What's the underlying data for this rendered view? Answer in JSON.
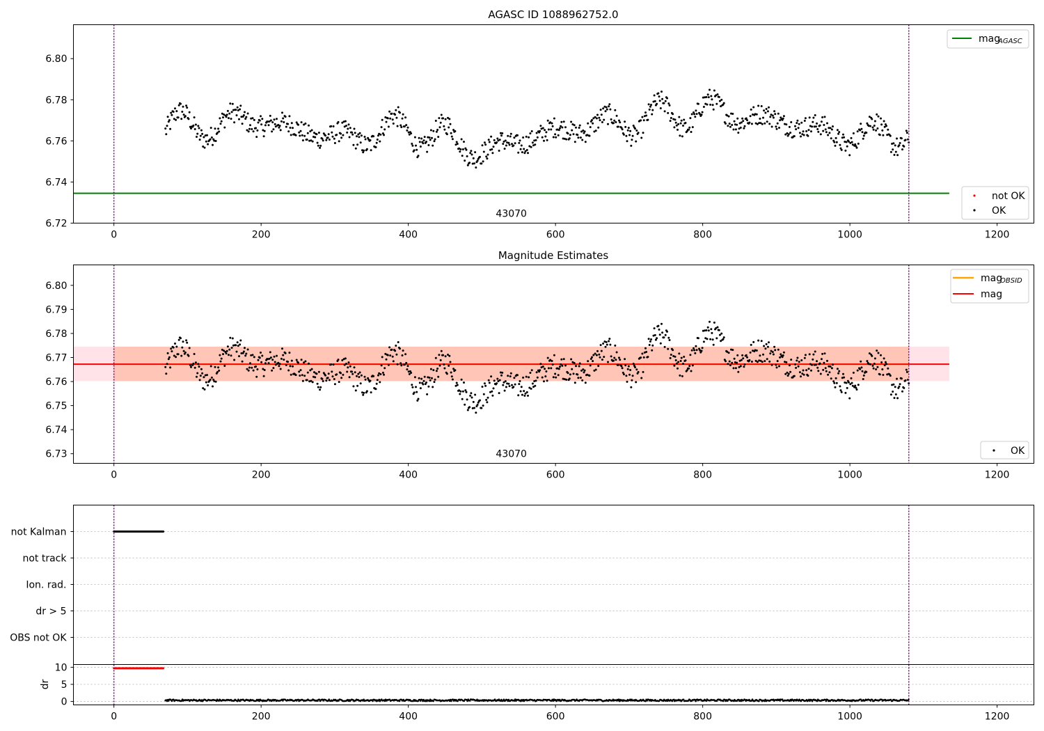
{
  "colors": {
    "points_ok": "#000000",
    "points_not_ok": "#ff0000",
    "mag_agasc_line": "#008000",
    "mag_obsid_line": "#ffa500",
    "mag_line": "#ff0000",
    "band_mag": "#ffc0cb",
    "band_obsid": "#ffa07a",
    "marker_line": "#800080",
    "grid": "#b0b0b0"
  },
  "chart_data": [
    {
      "id": "agasc",
      "type": "scatter",
      "title": "AGASC ID 1088962752.0",
      "xlabel": "",
      "ylabel": "",
      "xlim": [
        -55,
        1250
      ],
      "ylim": [
        6.72,
        6.8165
      ],
      "xticks": [
        "0",
        "200",
        "400",
        "600",
        "800",
        "1000",
        "1200"
      ],
      "yticks": [
        "6.72",
        "6.74",
        "6.76",
        "6.78",
        "6.80"
      ],
      "vlines": [
        0,
        1080
      ],
      "hlines": [
        {
          "name": "mag_AGASC",
          "y": 6.7345,
          "x": [
            -55,
            1135
          ]
        }
      ],
      "obsid_label": {
        "text": "43070",
        "x": 540
      },
      "series": [
        {
          "name": "OK",
          "x_range": [
            70,
            1080
          ],
          "baseline": 6.767,
          "amp": 0.008,
          "noise": 0.005,
          "count": 930,
          "trend": [
            [
              70,
              6.766
            ],
            [
              200,
              6.77
            ],
            [
              300,
              6.761
            ],
            [
              400,
              6.766
            ],
            [
              510,
              6.755
            ],
            [
              600,
              6.765
            ],
            [
              720,
              6.77
            ],
            [
              800,
              6.775
            ],
            [
              900,
              6.77
            ],
            [
              1000,
              6.762
            ],
            [
              1080,
              6.765
            ]
          ]
        },
        {
          "name": "not OK",
          "count": 0
        }
      ],
      "legend_upper": [
        {
          "label": "mag",
          "subscript": "AGASC",
          "kind": "line",
          "color_key": "mag_agasc_line"
        }
      ],
      "legend_lower": [
        {
          "label": "not OK",
          "kind": "dot",
          "color_key": "points_not_ok"
        },
        {
          "label": "OK",
          "kind": "dot",
          "color_key": "points_ok"
        }
      ]
    },
    {
      "id": "estimates",
      "type": "scatter",
      "title": "Magnitude Estimates",
      "xlabel": "",
      "ylabel": "",
      "xlim": [
        -55,
        1250
      ],
      "ylim": [
        6.726,
        6.8085
      ],
      "xticks": [
        "0",
        "200",
        "400",
        "600",
        "800",
        "1000",
        "1200"
      ],
      "yticks": [
        "6.73",
        "6.74",
        "6.75",
        "6.76",
        "6.77",
        "6.78",
        "6.79",
        "6.80"
      ],
      "vlines": [
        0,
        1080
      ],
      "hlines": [
        {
          "name": "mag_OBSID",
          "y": 6.7672,
          "x": [
            70,
            1080
          ]
        },
        {
          "name": "mag",
          "y": 6.7672,
          "x": [
            -55,
            1135
          ]
        }
      ],
      "bands": [
        {
          "name": "mag",
          "y": [
            6.7602,
            6.7745
          ],
          "x": [
            -55,
            1135
          ]
        },
        {
          "name": "mag_OBSID",
          "y": [
            6.7602,
            6.7745
          ],
          "x": [
            0,
            1080
          ]
        }
      ],
      "obsid_label": {
        "text": "43070",
        "x": 540
      },
      "series": [
        {
          "name": "OK",
          "same_as": "agasc"
        }
      ],
      "legend_upper": [
        {
          "label": "mag",
          "subscript": "OBSID",
          "kind": "line",
          "color_key": "mag_obsid_line"
        },
        {
          "label": "mag",
          "subscript": "",
          "kind": "line",
          "color_key": "mag_line"
        }
      ],
      "legend_lower": [
        {
          "label": "OK",
          "kind": "dot",
          "color_key": "points_ok"
        }
      ]
    },
    {
      "id": "flags",
      "type": "scatter",
      "title": "",
      "xlim": [
        -55,
        1250
      ],
      "categories": [
        "not Kalman",
        "not track",
        "Ion. rad.",
        "dr > 5",
        "OBS not OK"
      ],
      "flag_ranges": [
        {
          "category": "not Kalman",
          "x": [
            0,
            68
          ]
        }
      ],
      "vlines": [
        0,
        1080
      ],
      "grid": true
    },
    {
      "id": "dr",
      "type": "scatter",
      "title": "",
      "xlabel": "",
      "ylabel": "dr",
      "xlim": [
        -55,
        1250
      ],
      "ylim": [
        -1,
        10.8
      ],
      "xticks": [
        "0",
        "200",
        "400",
        "600",
        "800",
        "1000",
        "1200"
      ],
      "yticks": [
        "0",
        "5",
        "10"
      ],
      "vlines": [
        0,
        1080
      ],
      "series": [
        {
          "name": "dr not OK",
          "x_range": [
            0,
            68
          ],
          "value": 9.7,
          "color_key": "points_not_ok"
        },
        {
          "name": "dr OK",
          "x_range": [
            70,
            1080
          ],
          "value": 0.35,
          "noise": 0.25,
          "color_key": "points_ok"
        }
      ]
    }
  ]
}
